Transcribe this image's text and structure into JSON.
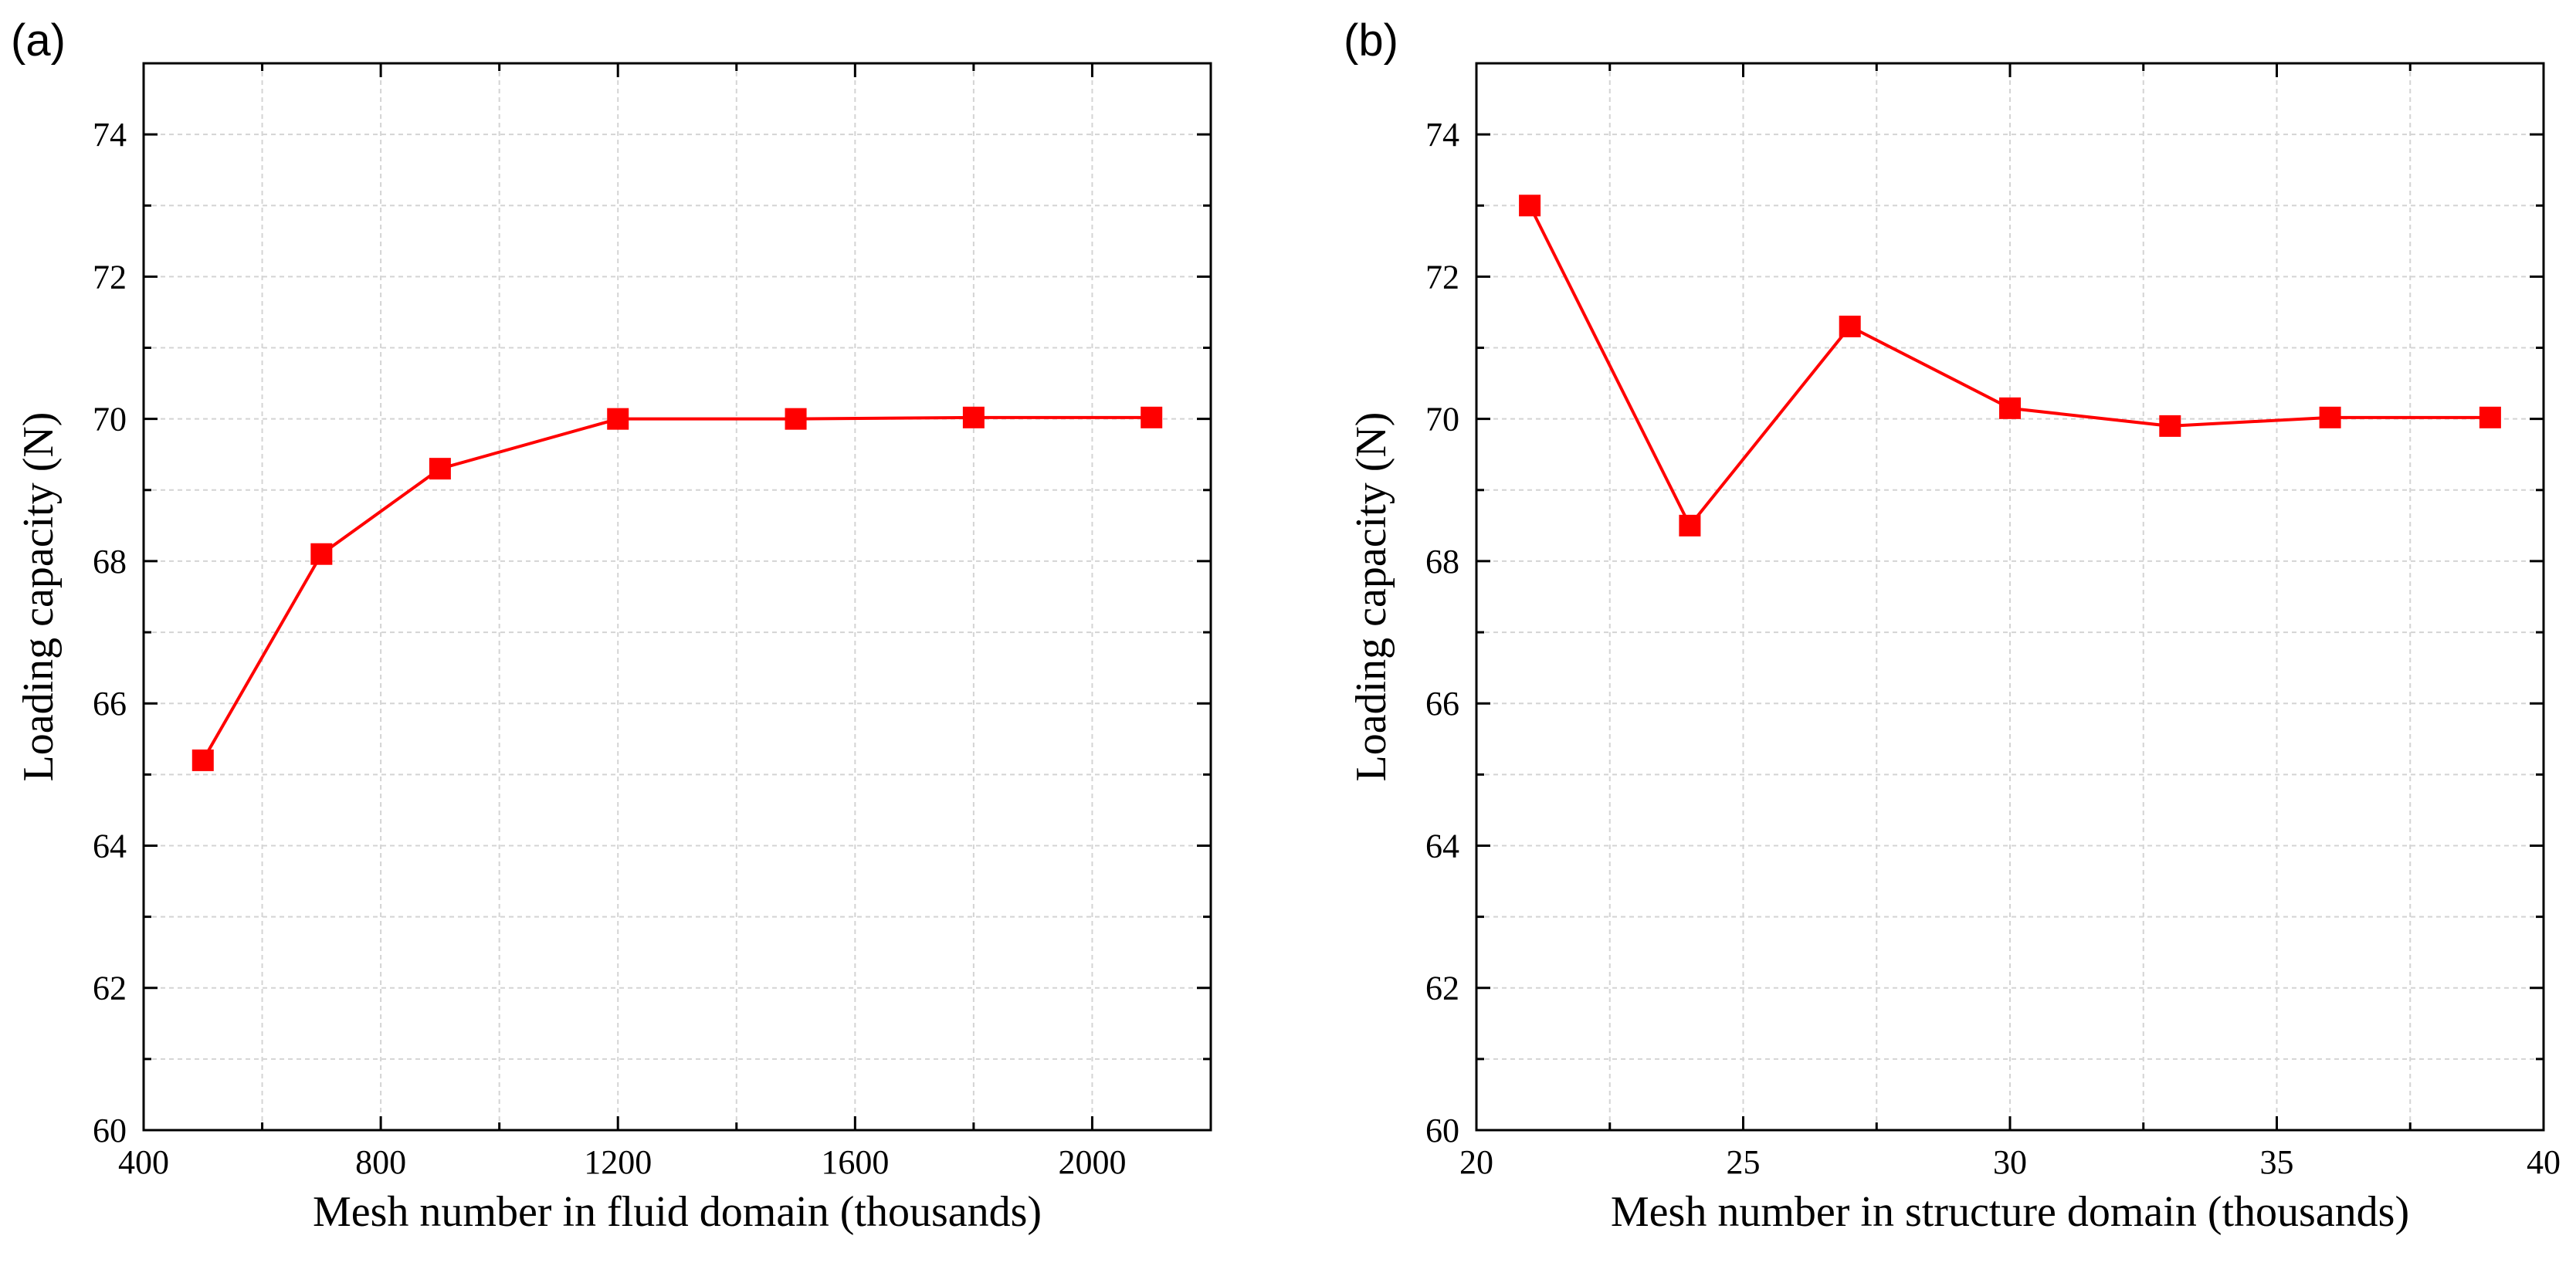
{
  "chart_data": [
    {
      "panel_label": "(a)",
      "type": "line",
      "marker": "square",
      "xlabel": "Mesh number in fluid domain (thousands)",
      "ylabel": "Loading capacity (N)",
      "xlim": [
        400,
        2200
      ],
      "ylim": [
        60,
        75
      ],
      "x_major_ticks": [
        400,
        800,
        1200,
        1600,
        2000
      ],
      "x_minor_ticks": [
        600,
        1000,
        1400,
        1800,
        2200
      ],
      "y_major_ticks": [
        60,
        62,
        64,
        66,
        68,
        70,
        72,
        74
      ],
      "y_minor_ticks": [
        61,
        63,
        65,
        67,
        69,
        71,
        73,
        75
      ],
      "x_tick_labels": [
        "400",
        "800",
        "1200",
        "1600",
        "2000"
      ],
      "y_tick_labels": [
        "60",
        "62",
        "64",
        "66",
        "68",
        "70",
        "72",
        "74"
      ],
      "grid": true,
      "series": [
        {
          "name": "Loading capacity",
          "color": "#ff0000",
          "x": [
            500,
            700,
            900,
            1200,
            1500,
            1800,
            2100
          ],
          "y": [
            65.2,
            68.1,
            69.3,
            70.0,
            70.0,
            70.02,
            70.02
          ]
        }
      ]
    },
    {
      "panel_label": "(b)",
      "type": "line",
      "marker": "square",
      "xlabel": "Mesh number in structure domain (thousands)",
      "ylabel": "Loading capacity (N)",
      "xlim": [
        20,
        40
      ],
      "ylim": [
        60,
        75
      ],
      "x_major_ticks": [
        20,
        25,
        30,
        35,
        40
      ],
      "x_minor_ticks": [
        22.5,
        27.5,
        32.5,
        37.5
      ],
      "y_major_ticks": [
        60,
        62,
        64,
        66,
        68,
        70,
        72,
        74
      ],
      "y_minor_ticks": [
        61,
        63,
        65,
        67,
        69,
        71,
        73,
        75
      ],
      "x_tick_labels": [
        "20",
        "25",
        "30",
        "35",
        "40"
      ],
      "y_tick_labels": [
        "60",
        "62",
        "64",
        "66",
        "68",
        "70",
        "72",
        "74"
      ],
      "grid": true,
      "series": [
        {
          "name": "Loading capacity",
          "color": "#ff0000",
          "x": [
            21,
            24,
            27,
            30,
            33,
            36,
            39
          ],
          "y": [
            73.0,
            68.5,
            71.3,
            70.15,
            69.9,
            70.02,
            70.02
          ]
        }
      ]
    }
  ]
}
